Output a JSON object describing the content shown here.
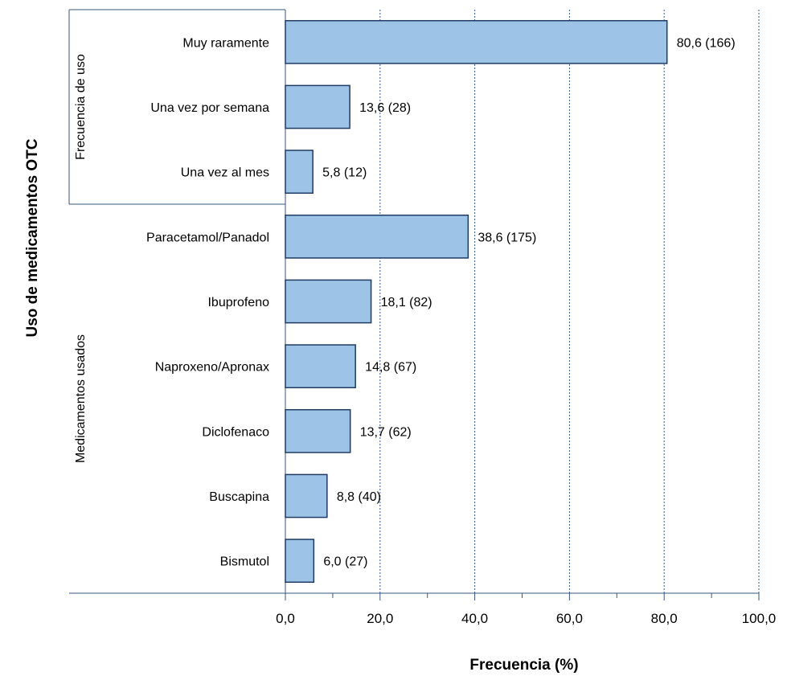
{
  "chart_data": {
    "type": "bar",
    "orientation": "horizontal",
    "xlabel": "Frecuencia (%)",
    "ylabel": "Uso de medicamentos OTC",
    "xlim": [
      0,
      100
    ],
    "x_ticks": [
      "0,0",
      "20,0",
      "40,0",
      "60,0",
      "80,0",
      "100,0"
    ],
    "grid": "vertical dashed at major ticks",
    "bar_color": "#9dc3e6",
    "bar_edge_color": "#1f3a63",
    "groups": [
      {
        "name": "Frecuencia de uso",
        "categories": [
          "Muy raramente",
          "Una vez por semana",
          "Una vez al mes"
        ],
        "values": [
          80.6,
          13.6,
          5.8
        ],
        "labels": [
          "80,6 (166)",
          "13,6 (28)",
          "5,8 (12)"
        ]
      },
      {
        "name": "Medicamentos usados",
        "categories": [
          "Paracetamol/Panadol",
          "Ibuprofeno",
          "Naproxeno/Apronax",
          "Diclofenaco",
          "Buscapina",
          "Bismutol"
        ],
        "values": [
          38.6,
          18.1,
          14.8,
          13.7,
          8.8,
          6.0
        ],
        "labels": [
          "38,6 (175)",
          "18,1 (82)",
          "14,8 (67)",
          "13,7 (62)",
          "8,8 (40)",
          "6,0 (27)"
        ]
      }
    ]
  }
}
